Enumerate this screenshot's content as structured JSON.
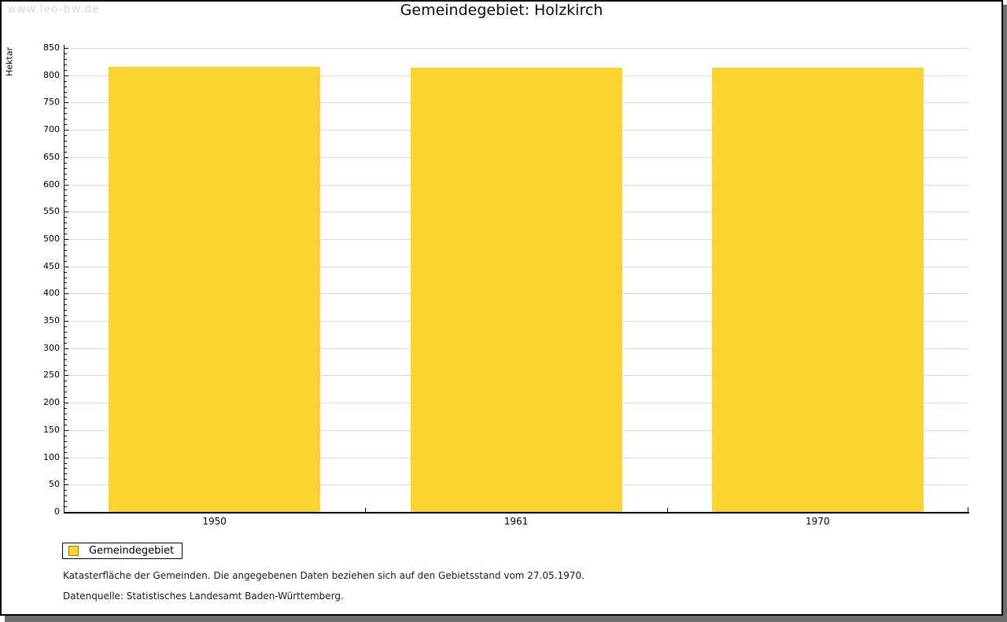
{
  "watermark": "www.leo-bw.de",
  "chart_data": {
    "type": "bar",
    "title": "Gemeindegebiet: Holzkirch",
    "categories": [
      "1950",
      "1961",
      "1970"
    ],
    "series_name": "Gemeindegebiet",
    "values": [
      815,
      814,
      814
    ],
    "xlabel": "",
    "ylabel": "Hektar",
    "ylim": [
      0,
      850
    ],
    "ytick_step": 50,
    "minor_tick_step": 10,
    "grid": true,
    "legend_position": "bottom-left"
  },
  "footnotes": {
    "line1": "Katasterfläche der Gemeinden. Die angegebenen Daten beziehen sich auf den Gebietsstand vom 27.05.1970.",
    "line2": "Datenquelle: Statistisches Landesamt Baden-Württemberg."
  },
  "colors": {
    "bar": "#fdd42f",
    "swatch_border": "#a08000",
    "grid": "#dcdcdc",
    "axis": "#000000",
    "watermark": "#d8d8d8",
    "shadow": "#6e6e6e"
  }
}
